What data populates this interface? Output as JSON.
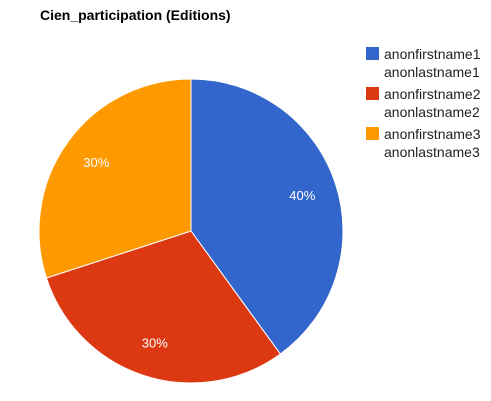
{
  "chart_data": {
    "type": "pie",
    "title": "Cien_participation (Editions)",
    "slices": [
      {
        "name_first": "anonfirstname1",
        "name_last": "anonlastname1",
        "value": 40,
        "label": "40%",
        "color": "#3366cc"
      },
      {
        "name_first": "anonfirstname2",
        "name_last": "anonlastname2",
        "value": 30,
        "label": "30%",
        "color": "#dc3912"
      },
      {
        "name_first": "anonfirstname3",
        "name_last": "anonlastname3",
        "value": 30,
        "label": "30%",
        "color": "#ff9900"
      }
    ],
    "legend_position": "right"
  }
}
